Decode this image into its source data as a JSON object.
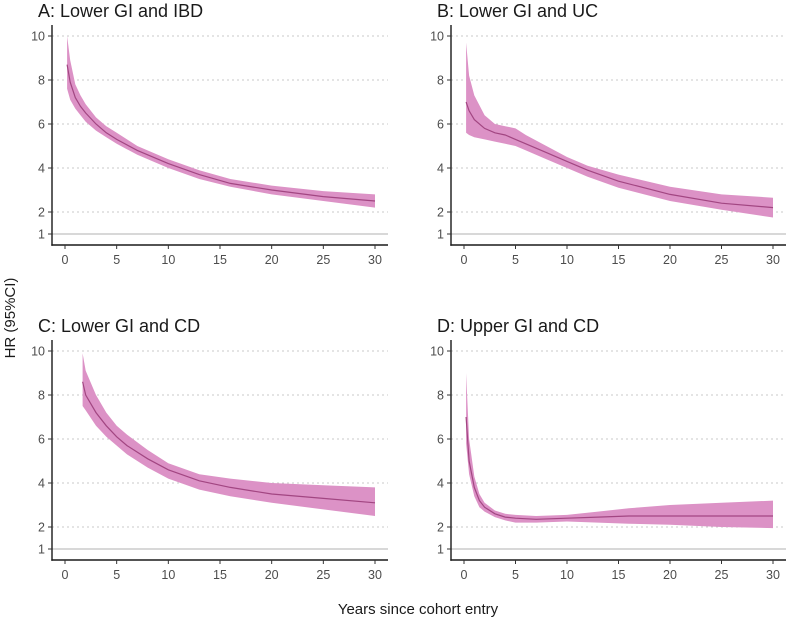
{
  "figure": {
    "ylabel": "HR (95%CI)",
    "xlabel": "Years since cohort entry"
  },
  "colors": {
    "band": "#dc92c6",
    "line": "#a24682",
    "grid": "#c8c8c8",
    "refline": "#b0b0b0"
  },
  "chart_data": [
    {
      "type": "line",
      "title": "A: Lower GI and IBD",
      "xlabel": "Years since cohort entry",
      "ylabel": "HR (95%CI)",
      "xlim": [
        0,
        30
      ],
      "ylim": [
        0.5,
        10.5
      ],
      "xticks": [
        0,
        5,
        10,
        15,
        20,
        25,
        30
      ],
      "yticks": [
        1,
        2,
        4,
        6,
        8,
        10
      ],
      "grid_y": [
        2,
        4,
        6,
        8,
        10
      ],
      "reference_line": 1,
      "series": [
        {
          "name": "HR",
          "x": [
            0.2,
            0.5,
            1,
            1.5,
            2,
            3,
            4,
            5,
            7,
            10,
            13,
            16,
            20,
            25,
            30
          ],
          "y": [
            8.7,
            7.9,
            7.2,
            6.8,
            6.5,
            6.0,
            5.6,
            5.3,
            4.8,
            4.2,
            3.7,
            3.3,
            3.0,
            2.7,
            2.5
          ],
          "lower": [
            7.6,
            7.1,
            6.7,
            6.4,
            6.1,
            5.7,
            5.4,
            5.1,
            4.6,
            4.0,
            3.5,
            3.15,
            2.8,
            2.5,
            2.2
          ],
          "upper": [
            10.0,
            8.9,
            7.8,
            7.3,
            6.9,
            6.3,
            5.9,
            5.6,
            5.0,
            4.4,
            3.9,
            3.5,
            3.2,
            2.95,
            2.8
          ]
        }
      ]
    },
    {
      "type": "line",
      "title": "B: Lower GI and UC",
      "xlabel": "Years since cohort entry",
      "ylabel": "HR (95%CI)",
      "xlim": [
        0,
        30
      ],
      "ylim": [
        0.5,
        10.5
      ],
      "xticks": [
        0,
        5,
        10,
        15,
        20,
        25,
        30
      ],
      "yticks": [
        1,
        2,
        4,
        6,
        8,
        10
      ],
      "grid_y": [
        2,
        4,
        6,
        8,
        10
      ],
      "reference_line": 1,
      "series": [
        {
          "name": "HR",
          "x": [
            0.2,
            0.5,
            1,
            2,
            3,
            4,
            5,
            6,
            8,
            10,
            12,
            15,
            20,
            25,
            30
          ],
          "y": [
            7.0,
            6.6,
            6.2,
            5.8,
            5.6,
            5.5,
            5.3,
            5.1,
            4.7,
            4.3,
            3.9,
            3.4,
            2.8,
            2.4,
            2.2
          ],
          "lower": [
            5.6,
            5.5,
            5.4,
            5.3,
            5.2,
            5.1,
            5.0,
            4.8,
            4.4,
            4.0,
            3.6,
            3.1,
            2.5,
            2.1,
            1.75
          ],
          "upper": [
            9.7,
            8.2,
            7.3,
            6.4,
            6.0,
            5.9,
            5.8,
            5.5,
            5.0,
            4.5,
            4.1,
            3.7,
            3.15,
            2.8,
            2.65
          ]
        }
      ]
    },
    {
      "type": "line",
      "title": "C: Lower GI and CD",
      "xlabel": "Years since cohort entry",
      "ylabel": "HR (95%CI)",
      "xlim": [
        0,
        30
      ],
      "ylim": [
        0.5,
        10.5
      ],
      "xticks": [
        0,
        5,
        10,
        15,
        20,
        25,
        30
      ],
      "yticks": [
        1,
        2,
        4,
        6,
        8,
        10
      ],
      "grid_y": [
        2,
        4,
        6,
        8,
        10
      ],
      "reference_line": 1,
      "series": [
        {
          "name": "HR",
          "x": [
            1.7,
            2,
            3,
            4,
            5,
            6,
            8,
            10,
            13,
            16,
            20,
            25,
            30
          ],
          "y": [
            8.6,
            8.0,
            7.2,
            6.6,
            6.1,
            5.7,
            5.1,
            4.6,
            4.1,
            3.8,
            3.5,
            3.3,
            3.1
          ],
          "lower": [
            7.5,
            7.3,
            6.6,
            6.1,
            5.7,
            5.3,
            4.7,
            4.2,
            3.7,
            3.4,
            3.1,
            2.8,
            2.5
          ],
          "upper": [
            9.9,
            9.1,
            8.0,
            7.2,
            6.6,
            6.2,
            5.5,
            4.9,
            4.4,
            4.2,
            4.0,
            3.9,
            3.8
          ]
        }
      ]
    },
    {
      "type": "line",
      "title": "D: Upper GI and CD",
      "xlabel": "Years since cohort entry",
      "ylabel": "HR (95%CI)",
      "xlim": [
        0,
        30
      ],
      "ylim": [
        0.5,
        10.5
      ],
      "xticks": [
        0,
        5,
        10,
        15,
        20,
        25,
        30
      ],
      "yticks": [
        1,
        2,
        4,
        6,
        8,
        10
      ],
      "grid_y": [
        2,
        4,
        6,
        8,
        10
      ],
      "reference_line": 1,
      "series": [
        {
          "name": "HR",
          "x": [
            0.2,
            0.5,
            1,
            1.5,
            2,
            3,
            4,
            5,
            7,
            10,
            13,
            16,
            20,
            25,
            30
          ],
          "y": [
            7.0,
            5.0,
            3.8,
            3.2,
            2.9,
            2.6,
            2.45,
            2.4,
            2.35,
            2.4,
            2.45,
            2.5,
            2.5,
            2.5,
            2.5
          ],
          "lower": [
            5.8,
            4.4,
            3.4,
            2.9,
            2.7,
            2.45,
            2.3,
            2.2,
            2.2,
            2.25,
            2.2,
            2.15,
            2.1,
            2.0,
            1.95
          ],
          "upper": [
            9.0,
            6.0,
            4.3,
            3.5,
            3.1,
            2.75,
            2.6,
            2.55,
            2.5,
            2.55,
            2.7,
            2.85,
            3.0,
            3.1,
            3.2
          ]
        }
      ]
    }
  ]
}
